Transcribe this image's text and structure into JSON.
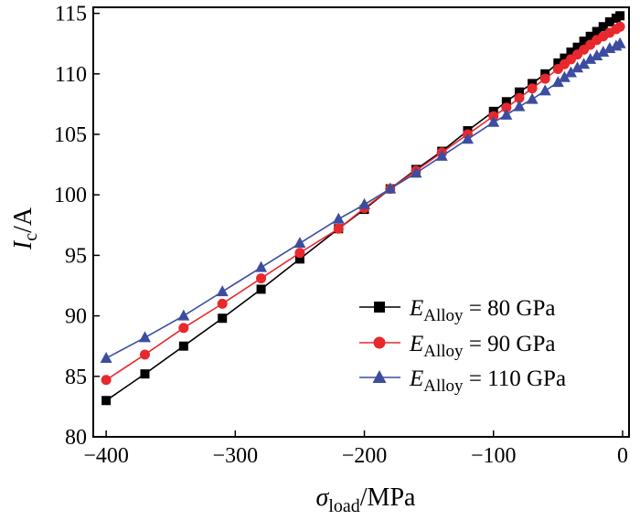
{
  "chart_data": {
    "type": "line",
    "xlim": [
      -410,
      5
    ],
    "ylim": [
      80,
      115.5
    ],
    "x_ticks": [
      -400,
      -300,
      -200,
      -100,
      0
    ],
    "y_ticks": [
      80,
      85,
      90,
      95,
      100,
      105,
      110,
      115
    ],
    "x_tick_labels": [
      "−400",
      "−300",
      "−200",
      "−100",
      "0"
    ],
    "y_tick_labels": [
      "80",
      "85",
      "90",
      "95",
      "100",
      "105",
      "110",
      "115"
    ],
    "xlabel": {
      "symbol": "σ",
      "subscript": "load",
      "unit": "/MPa"
    },
    "ylabel": {
      "symbol": "I",
      "subscript": "c",
      "unit": "/A"
    },
    "grid": false,
    "legend_position": "bottom-right",
    "series": [
      {
        "legend": {
          "symbol": "E",
          "subscript": "Alloy",
          "value": " = 80 GPa"
        },
        "color": "#000000",
        "marker": "square",
        "x": [
          -400,
          -370,
          -340,
          -310,
          -280,
          -250,
          -220,
          -200,
          -180,
          -160,
          -140,
          -120,
          -100,
          -90,
          -80,
          -70,
          -60,
          -50,
          -45,
          -40,
          -35,
          -30,
          -25,
          -20,
          -15,
          -10,
          -5,
          -2
        ],
        "y": [
          83.0,
          85.2,
          87.5,
          89.8,
          92.2,
          94.7,
          97.2,
          98.8,
          100.5,
          102.1,
          103.6,
          105.3,
          106.9,
          107.7,
          108.5,
          109.2,
          110.0,
          110.9,
          111.3,
          111.8,
          112.2,
          112.7,
          113.1,
          113.5,
          113.9,
          114.3,
          114.6,
          114.8
        ]
      },
      {
        "legend": {
          "symbol": "E",
          "subscript": "Alloy",
          "value": " = 90 GPa"
        },
        "color": "#e8282d",
        "marker": "circle",
        "x": [
          -400,
          -370,
          -340,
          -310,
          -280,
          -250,
          -220,
          -200,
          -180,
          -160,
          -140,
          -120,
          -100,
          -90,
          -80,
          -70,
          -60,
          -50,
          -45,
          -40,
          -35,
          -30,
          -25,
          -20,
          -15,
          -10,
          -5,
          -2
        ],
        "y": [
          84.7,
          86.8,
          89.0,
          91.0,
          93.1,
          95.2,
          97.2,
          98.9,
          100.5,
          102.0,
          103.5,
          105.0,
          106.5,
          107.2,
          108.0,
          108.8,
          109.6,
          110.4,
          110.8,
          111.2,
          111.6,
          112.0,
          112.4,
          112.8,
          113.1,
          113.4,
          113.7,
          113.9
        ]
      },
      {
        "legend": {
          "symbol": "E",
          "subscript": "Alloy",
          "value": " = 110 GPa"
        },
        "color": "#3c4da0",
        "marker": "triangle",
        "x": [
          -400,
          -370,
          -340,
          -310,
          -280,
          -250,
          -220,
          -200,
          -180,
          -160,
          -140,
          -120,
          -100,
          -90,
          -80,
          -70,
          -60,
          -50,
          -45,
          -40,
          -35,
          -30,
          -25,
          -20,
          -15,
          -10,
          -5,
          -2
        ],
        "y": [
          86.5,
          88.2,
          90.0,
          92.0,
          94.0,
          96.0,
          98.0,
          99.2,
          100.5,
          101.8,
          103.2,
          104.6,
          106.0,
          106.6,
          107.3,
          107.9,
          108.6,
          109.3,
          109.7,
          110.1,
          110.5,
          110.8,
          111.2,
          111.5,
          111.8,
          112.1,
          112.3,
          112.5
        ]
      }
    ]
  }
}
